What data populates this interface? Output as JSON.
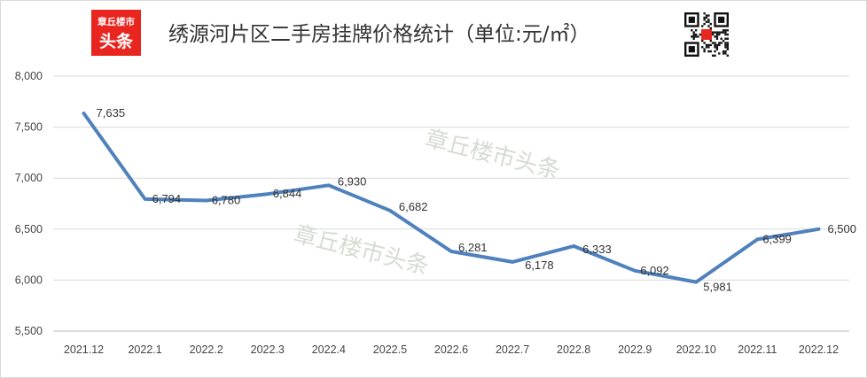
{
  "chart_data": {
    "type": "line",
    "title": "绣源河片区二手房挂牌价格统计（单位:元/㎡）",
    "categories": [
      "2021.12",
      "2022.1",
      "2022.2",
      "2022.3",
      "2022.4",
      "2022.5",
      "2022.6",
      "2022.7",
      "2022.8",
      "2022.9",
      "2022.10",
      "2022.11",
      "2022.12"
    ],
    "values": [
      7635,
      6794,
      6780,
      6844,
      6930,
      6682,
      6281,
      6178,
      6333,
      6092,
      5981,
      6399,
      6500
    ],
    "data_labels": [
      "7,635",
      "6,794",
      "6,780",
      "6,844",
      "6,930",
      "6,682",
      "6,281",
      "6,178",
      "6,333",
      "6,092",
      "5,981",
      "6,399",
      "6,500"
    ],
    "ylim": [
      5500,
      8000
    ],
    "yticks": [
      5500,
      6000,
      6500,
      7000,
      7500,
      8000
    ],
    "ytick_labels": [
      "5,500",
      "6,000",
      "6,500",
      "7,000",
      "7,500",
      "8,000"
    ],
    "grid": true,
    "line_color": "#4f81bd",
    "xlabel": "",
    "ylabel": ""
  },
  "logo": {
    "text_top": "章丘楼市",
    "text_bottom": "头条",
    "color": "#e8251f",
    "icon": "logo-icon"
  },
  "qr": {
    "icon": "qr-code-icon"
  },
  "watermark": "章丘楼市头条"
}
